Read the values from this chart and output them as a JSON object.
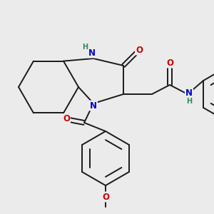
{
  "bg_color": "#ebebeb",
  "bond_color": "#1a1a1a",
  "bond_width": 1.4,
  "atom_colors": {
    "N": "#0000cc",
    "O": "#cc0000",
    "H": "#2e8b57",
    "C": "#1a1a1a"
  },
  "font_size_atom": 8.5,
  "fig_size": [
    3.0,
    3.0
  ],
  "dpi": 100,
  "xlim": [
    0,
    300
  ],
  "ylim": [
    0,
    300
  ]
}
